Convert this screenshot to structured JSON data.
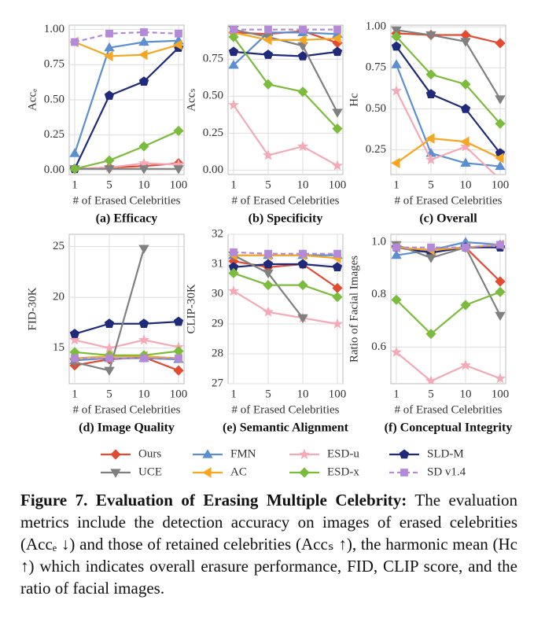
{
  "chart_data": [
    {
      "type": "line",
      "subtitle": "(a) Efficacy",
      "xlabel": "# of Erased Celebrities",
      "ylabel": "Accₑ",
      "categories": [
        "1",
        "5",
        "10",
        "100"
      ],
      "ylim": [
        -0.03,
        1.03
      ],
      "yticks": [
        {
          "value": 0,
          "label": "0.00"
        },
        0.25,
        {
          "value": 0.5,
          "label": "0.50"
        },
        0.75,
        {
          "value": 1,
          "label": "1.00"
        }
      ],
      "grid": true,
      "series": [
        {
          "values": [
            0.01,
            0.02,
            0.03,
            0.05
          ]
        },
        {
          "values": [
            0.12,
            0.87,
            0.91,
            0.92
          ]
        },
        {
          "values": [
            0.01,
            0.02,
            0.05,
            0.04
          ]
        },
        {
          "values": [
            0.01,
            0.53,
            0.63,
            0.87
          ]
        },
        {
          "values": [
            0.01,
            0.01,
            0.01,
            0.01
          ]
        },
        {
          "values": [
            0.91,
            0.81,
            0.82,
            0.89
          ]
        },
        {
          "values": [
            0.01,
            0.07,
            0.17,
            0.28
          ]
        },
        {
          "values": [
            0.91,
            0.97,
            0.98,
            0.97
          ]
        }
      ]
    },
    {
      "type": "line",
      "subtitle": "(b) Specificity",
      "xlabel": "# of Erased Celebrities",
      "ylabel": "Accₛ",
      "categories": [
        "1",
        "5",
        "10",
        "100"
      ],
      "ylim": [
        -0.03,
        0.98
      ],
      "yticks": [
        {
          "value": 0,
          "label": "0.00"
        },
        0.25,
        {
          "value": 0.5,
          "label": "0.50"
        },
        0.75
      ],
      "grid": true,
      "series": [
        {
          "values": [
            0.93,
            0.92,
            0.94,
            0.86
          ]
        },
        {
          "values": [
            0.71,
            0.93,
            0.93,
            0.92
          ]
        },
        {
          "values": [
            0.44,
            0.1,
            0.16,
            0.03
          ]
        },
        {
          "values": [
            0.8,
            0.78,
            0.77,
            0.8
          ]
        },
        {
          "values": [
            0.95,
            0.9,
            0.84,
            0.39
          ]
        },
        {
          "values": [
            0.93,
            0.88,
            0.88,
            0.89
          ]
        },
        {
          "values": [
            0.9,
            0.58,
            0.53,
            0.28
          ]
        },
        {
          "values": [
            0.95,
            0.95,
            0.95,
            0.95
          ]
        }
      ]
    },
    {
      "type": "line",
      "subtitle": "(c) Overall",
      "xlabel": "# of Erased Celebrities",
      "ylabel": "Hc",
      "categories": [
        "1",
        "5",
        "10",
        "100"
      ],
      "ylim": [
        0.1,
        1.01
      ],
      "yticks": [
        0.25,
        {
          "value": 0.5,
          "label": "0.50"
        },
        0.75,
        {
          "value": 1,
          "label": "1.00"
        }
      ],
      "grid": true,
      "series": [
        {
          "values": [
            0.96,
            0.95,
            0.95,
            0.9
          ]
        },
        {
          "values": [
            0.77,
            0.23,
            0.17,
            0.15
          ]
        },
        {
          "values": [
            0.61,
            0.19,
            0.27,
            0.07
          ]
        },
        {
          "values": [
            0.88,
            0.59,
            0.5,
            0.23
          ]
        },
        {
          "values": [
            0.98,
            0.95,
            0.91,
            0.56
          ]
        },
        {
          "values": [
            0.17,
            0.32,
            0.3,
            0.2
          ]
        },
        {
          "values": [
            0.94,
            0.71,
            0.65,
            0.41
          ]
        },
        {
          "values": [
            null,
            null,
            null,
            null
          ]
        }
      ]
    },
    {
      "type": "line",
      "subtitle": "(d) Image Quality",
      "xlabel": "# of Erased Celebrities",
      "ylabel": "FID-30K",
      "categories": [
        "1",
        "5",
        "10",
        "100"
      ],
      "ylim": [
        11.5,
        26.2
      ],
      "yticks": [
        15,
        20,
        25
      ],
      "grid": true,
      "series": [
        {
          "values": [
            13.3,
            13.9,
            14.1,
            12.8
          ]
        },
        {
          "values": [
            13.8,
            14.0,
            14.0,
            13.9
          ]
        },
        {
          "values": [
            15.8,
            15.0,
            15.8,
            15.1
          ]
        },
        {
          "values": [
            16.4,
            17.4,
            17.4,
            17.6
          ]
        },
        {
          "values": [
            13.6,
            12.8,
            24.8,
            null
          ]
        },
        {
          "values": [
            14.0,
            14.2,
            14.2,
            14.0
          ]
        },
        {
          "values": [
            14.6,
            14.3,
            14.3,
            14.7
          ]
        },
        {
          "values": [
            14.0,
            14.0,
            14.0,
            14.0
          ]
        }
      ]
    },
    {
      "type": "line",
      "subtitle": "(e) Semantic Alignment",
      "xlabel": "# of Erased Celebrities",
      "ylabel": "CLIP-30K",
      "categories": [
        "1",
        "5",
        "10",
        "100"
      ],
      "ylim": [
        27,
        32
      ],
      "yticks": [
        27,
        28,
        29,
        30,
        31,
        32
      ],
      "grid": true,
      "series": [
        {
          "values": [
            31.1,
            30.9,
            31.0,
            30.2
          ]
        },
        {
          "values": [
            31.3,
            31.3,
            31.3,
            31.3
          ]
        },
        {
          "values": [
            30.1,
            29.4,
            29.2,
            29.0
          ]
        },
        {
          "values": [
            30.9,
            31.0,
            31.0,
            30.9
          ]
        },
        {
          "values": [
            31.3,
            30.7,
            29.2,
            null
          ]
        },
        {
          "values": [
            31.3,
            31.3,
            31.3,
            31.2
          ]
        },
        {
          "values": [
            30.7,
            30.3,
            30.3,
            29.9
          ]
        },
        {
          "values": [
            31.4,
            31.35,
            31.35,
            31.35
          ]
        }
      ]
    },
    {
      "type": "line",
      "subtitle": "(f) Conceptual Integrity",
      "xlabel": "# of Erased Celebrities",
      "ylabel": "Ratio of Facial Images",
      "categories": [
        "1",
        "5",
        "10",
        "100"
      ],
      "ylim": [
        0.46,
        1.03
      ],
      "yticks": [
        0.6,
        0.8,
        {
          "value": 1,
          "label": "1.0"
        }
      ],
      "grid": true,
      "series": [
        {
          "values": [
            0.98,
            0.97,
            0.98,
            0.85
          ]
        },
        {
          "values": [
            0.95,
            0.97,
            1.0,
            0.99
          ]
        },
        {
          "values": [
            0.58,
            0.47,
            0.53,
            0.48
          ]
        },
        {
          "values": [
            0.98,
            0.96,
            0.98,
            0.98
          ]
        },
        {
          "values": [
            0.99,
            0.94,
            0.98,
            0.72
          ]
        },
        {
          "values": [
            0.98,
            0.97,
            0.98,
            0.99
          ]
        },
        {
          "values": [
            0.78,
            0.65,
            0.76,
            0.81
          ]
        },
        {
          "values": [
            0.98,
            0.98,
            0.98,
            0.99
          ]
        }
      ]
    }
  ],
  "legend": [
    {
      "name": "Ours",
      "color": "#e34a2f",
      "marker": "diamond"
    },
    {
      "name": "FMN",
      "color": "#5b8fd0",
      "marker": "triangle-up"
    },
    {
      "name": "ESD-u",
      "color": "#f5a9b6",
      "marker": "star"
    },
    {
      "name": "SLD-M",
      "color": "#1f2a7a",
      "marker": "pentagon"
    },
    {
      "name": "UCE",
      "color": "#808080",
      "marker": "triangle-down"
    },
    {
      "name": "AC",
      "color": "#f5a623",
      "marker": "triangle-left"
    },
    {
      "name": "ESD-x",
      "color": "#7cbc3c",
      "marker": "diamond"
    },
    {
      "name": "SD v1.4",
      "color": "#b48ad8",
      "marker": "square",
      "linestyle": "dashed"
    }
  ],
  "caption": {
    "label": "Figure 7.",
    "title": "Evaluation of Erasing Multiple Celebrity:",
    "text": "The evaluation metrics include the detection accuracy on images of erased celebrities (Accₑ ↓) and those of retained celebrities (Accₛ ↑), the harmonic mean (Hc ↑) which indicates overall erasure performance, FID, CLIP score, and the ratio of facial images."
  }
}
